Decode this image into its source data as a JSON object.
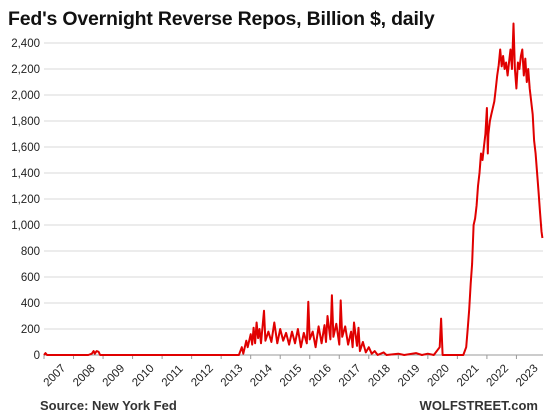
{
  "chart_data": {
    "type": "line",
    "title": "Fed's Overnight Reverse Repos, Billion $, daily",
    "xlabel": "",
    "ylabel": "",
    "xlim": [
      2007,
      2023.9
    ],
    "ylim": [
      0,
      2500
    ],
    "y_ticks": [
      "0",
      "200",
      "400",
      "600",
      "800",
      "1,000",
      "1,200",
      "1,400",
      "1,600",
      "1,800",
      "2,000",
      "2,200",
      "2,400"
    ],
    "x_ticks": [
      "2007",
      "2008",
      "2009",
      "2010",
      "2011",
      "2012",
      "2013",
      "2014",
      "2015",
      "2016",
      "2017",
      "2018",
      "2019",
      "2020",
      "2021",
      "2022",
      "2023"
    ],
    "grid": "horizontal",
    "series": [
      {
        "color": "#e00000",
        "points": [
          [
            2007.0,
            0
          ],
          [
            2007.05,
            15
          ],
          [
            2007.1,
            0
          ],
          [
            2008.0,
            0
          ],
          [
            2008.5,
            0
          ],
          [
            2008.62,
            10
          ],
          [
            2008.68,
            30
          ],
          [
            2008.72,
            10
          ],
          [
            2008.78,
            30
          ],
          [
            2008.85,
            25
          ],
          [
            2008.9,
            0
          ],
          [
            2012.0,
            0
          ],
          [
            2013.0,
            0
          ],
          [
            2013.6,
            0
          ],
          [
            2013.7,
            60
          ],
          [
            2013.75,
            10
          ],
          [
            2013.85,
            110
          ],
          [
            2013.9,
            60
          ],
          [
            2014.0,
            160
          ],
          [
            2014.05,
            80
          ],
          [
            2014.1,
            210
          ],
          [
            2014.15,
            90
          ],
          [
            2014.2,
            250
          ],
          [
            2014.25,
            130
          ],
          [
            2014.3,
            200
          ],
          [
            2014.35,
            90
          ],
          [
            2014.45,
            340
          ],
          [
            2014.5,
            110
          ],
          [
            2014.6,
            180
          ],
          [
            2014.7,
            100
          ],
          [
            2014.8,
            250
          ],
          [
            2014.9,
            90
          ],
          [
            2015.0,
            200
          ],
          [
            2015.1,
            110
          ],
          [
            2015.2,
            170
          ],
          [
            2015.3,
            80
          ],
          [
            2015.4,
            180
          ],
          [
            2015.5,
            90
          ],
          [
            2015.6,
            200
          ],
          [
            2015.7,
            60
          ],
          [
            2015.8,
            170
          ],
          [
            2015.9,
            90
          ],
          [
            2015.95,
            410
          ],
          [
            2016.0,
            120
          ],
          [
            2016.1,
            180
          ],
          [
            2016.2,
            60
          ],
          [
            2016.3,
            220
          ],
          [
            2016.4,
            90
          ],
          [
            2016.5,
            230
          ],
          [
            2016.55,
            100
          ],
          [
            2016.6,
            300
          ],
          [
            2016.7,
            120
          ],
          [
            2016.75,
            460
          ],
          [
            2016.8,
            140
          ],
          [
            2016.9,
            240
          ],
          [
            2017.0,
            80
          ],
          [
            2017.05,
            420
          ],
          [
            2017.1,
            140
          ],
          [
            2017.2,
            220
          ],
          [
            2017.3,
            80
          ],
          [
            2017.4,
            180
          ],
          [
            2017.45,
            60
          ],
          [
            2017.5,
            250
          ],
          [
            2017.6,
            70
          ],
          [
            2017.65,
            210
          ],
          [
            2017.7,
            30
          ],
          [
            2017.8,
            100
          ],
          [
            2017.9,
            20
          ],
          [
            2018.0,
            60
          ],
          [
            2018.1,
            10
          ],
          [
            2018.2,
            30
          ],
          [
            2018.3,
            0
          ],
          [
            2018.5,
            20
          ],
          [
            2018.6,
            0
          ],
          [
            2019.0,
            10
          ],
          [
            2019.2,
            0
          ],
          [
            2019.6,
            15
          ],
          [
            2019.8,
            0
          ],
          [
            2020.0,
            10
          ],
          [
            2020.2,
            0
          ],
          [
            2020.4,
            60
          ],
          [
            2020.45,
            280
          ],
          [
            2020.5,
            0
          ],
          [
            2020.6,
            0
          ],
          [
            2021.0,
            0
          ],
          [
            2021.2,
            0
          ],
          [
            2021.3,
            60
          ],
          [
            2021.35,
            200
          ],
          [
            2021.4,
            350
          ],
          [
            2021.45,
            550
          ],
          [
            2021.5,
            700
          ],
          [
            2021.55,
            1000
          ],
          [
            2021.6,
            1050
          ],
          [
            2021.65,
            1150
          ],
          [
            2021.7,
            1300
          ],
          [
            2021.75,
            1400
          ],
          [
            2021.8,
            1550
          ],
          [
            2021.85,
            1500
          ],
          [
            2021.9,
            1600
          ],
          [
            2021.95,
            1700
          ],
          [
            2022.0,
            1900
          ],
          [
            2022.03,
            1550
          ],
          [
            2022.05,
            1700
          ],
          [
            2022.1,
            1800
          ],
          [
            2022.15,
            1850
          ],
          [
            2022.2,
            1900
          ],
          [
            2022.25,
            1950
          ],
          [
            2022.3,
            2050
          ],
          [
            2022.35,
            2150
          ],
          [
            2022.4,
            2230
          ],
          [
            2022.45,
            2350
          ],
          [
            2022.5,
            2220
          ],
          [
            2022.55,
            2300
          ],
          [
            2022.6,
            2200
          ],
          [
            2022.65,
            2250
          ],
          [
            2022.7,
            2150
          ],
          [
            2022.75,
            2250
          ],
          [
            2022.8,
            2350
          ],
          [
            2022.85,
            2200
          ],
          [
            2022.9,
            2550
          ],
          [
            2022.95,
            2200
          ],
          [
            2023.0,
            2050
          ],
          [
            2023.05,
            2250
          ],
          [
            2023.1,
            2200
          ],
          [
            2023.15,
            2300
          ],
          [
            2023.2,
            2350
          ],
          [
            2023.25,
            2150
          ],
          [
            2023.3,
            2280
          ],
          [
            2023.35,
            2100
          ],
          [
            2023.4,
            2200
          ],
          [
            2023.45,
            2050
          ],
          [
            2023.5,
            1950
          ],
          [
            2023.55,
            1850
          ],
          [
            2023.6,
            1650
          ],
          [
            2023.65,
            1550
          ],
          [
            2023.7,
            1400
          ],
          [
            2023.75,
            1250
          ],
          [
            2023.8,
            1100
          ],
          [
            2023.85,
            950
          ],
          [
            2023.88,
            900
          ]
        ]
      }
    ]
  },
  "footer": {
    "source": "Source: New York Fed",
    "brand": "WOLFSTREET.com"
  },
  "colors": {
    "line": "#e00000",
    "grid": "#d9d9d9",
    "axis": "#999999"
  }
}
